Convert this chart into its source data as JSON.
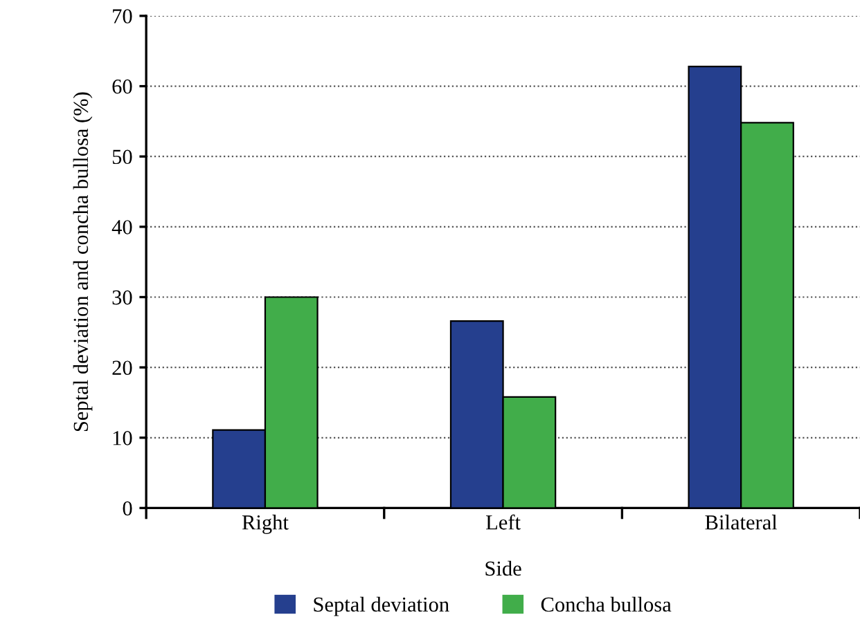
{
  "chart_data": {
    "type": "bar",
    "xlabel": "Side",
    "ylabel": "Septal deviation and concha bullosa (%)",
    "categories": [
      "Right",
      "Left",
      "Bilateral"
    ],
    "series": [
      {
        "name": "Septal deviation",
        "color": "#253f8e",
        "values": [
          11.1,
          26.6,
          62.8
        ]
      },
      {
        "name": "Concha bullosa",
        "color": "#41ad4a",
        "values": [
          30,
          15.8,
          54.8
        ]
      }
    ],
    "ylim": [
      0,
      70
    ],
    "yticks": [
      0,
      10,
      20,
      30,
      40,
      50,
      60,
      70
    ],
    "grid": "y",
    "legend": "bottom"
  }
}
